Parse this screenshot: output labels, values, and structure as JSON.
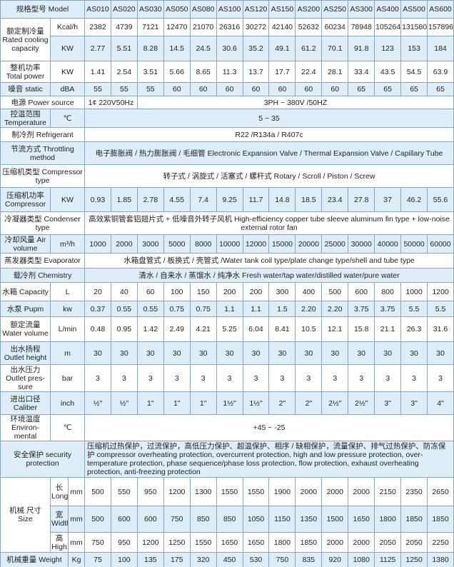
{
  "models": [
    "AS010",
    "AS020",
    "AS030",
    "AS050",
    "AS080",
    "AS100",
    "AS120",
    "AS150",
    "AS200",
    "AS250",
    "AS300",
    "AS400",
    "AS500",
    "AS600"
  ],
  "model_label": "规格型号 Model",
  "rows": [
    {
      "label": "额定制冷量 Rated cooling capacity",
      "unit": "Kcal/h",
      "values": [
        "2382",
        "4739",
        "7121",
        "12470",
        "21070",
        "26316",
        "30272",
        "42140",
        "52632",
        "60234",
        "78948",
        "105264",
        "131580",
        "157896"
      ],
      "h": 25,
      "bg": "w"
    },
    {
      "unit": "KW",
      "values": [
        "2.77",
        "5.51",
        "8.28",
        "14.5",
        "24.5",
        "30.6",
        "35.2",
        "49.1",
        "61.2",
        "70.1",
        "91.8",
        "123",
        "153",
        "184"
      ],
      "h": 35,
      "bg": "b"
    },
    {
      "label": "整机功率 Total power",
      "unit": "KW",
      "values": [
        "1.41",
        "2.54",
        "3.51",
        "5.66",
        "8.65",
        "11.3",
        "13.7",
        "17.7",
        "22.4",
        "28.1",
        "33.4",
        "43.5",
        "54.5",
        "63.9"
      ],
      "h": 30,
      "bg": "w"
    },
    {
      "label": "噪音 static",
      "unit": "dBA",
      "values": [
        "55",
        "55",
        "55",
        "60",
        "60",
        "60",
        "60",
        "60",
        "60",
        "60",
        "65",
        "65",
        "65",
        "65"
      ],
      "h": 19,
      "bg": "b"
    },
    {
      "label": "电源 Power source",
      "split": [
        "1¢ 220V50Hz",
        "3PH ~ 380V /50HZ"
      ],
      "h": 18,
      "bg": "w"
    },
    {
      "label": "控温范围 Temperature",
      "unit": "℃",
      "span": "5 ~ 35",
      "h": 26,
      "bg": "b"
    },
    {
      "label": "制冷剂 Refrigerant",
      "span": "R22 /R134a / R407c",
      "h": 20,
      "bg": "w"
    },
    {
      "label": "节流方式 Throttling method",
      "span": "电子膨胀阀 / 热力膨胀阀 / 毛细管 Electronic Expansion Valve / Thermal Expansion Valve / Capillary Tube",
      "h": 32,
      "bg": "b"
    },
    {
      "label": "压缩机类型 Compressor type",
      "span": "转子式 / 涡旋式 / 活塞式 / 螺杆式 Rotary / Scroll / Piston / Screw",
      "h": 32,
      "bg": "w"
    },
    {
      "label": "压缩机功率 Compressor",
      "unit": "KW",
      "values": [
        "0.93",
        "1.85",
        "2.78",
        "4.55",
        "7.4",
        "9.25",
        "11.7",
        "14.8",
        "18.5",
        "23.4",
        "27.8",
        "37",
        "46.2",
        "55.6"
      ],
      "h": 34,
      "bg": "b"
    },
    {
      "label": "冷凝器类型 Condenser type",
      "span": "高效紫铜管套铝翅片式 + 低噪音外转子风机 High-efficiency copper tube sleeve aluminum fin type + low-noise external rotor fan",
      "h": 32,
      "bg": "w"
    },
    {
      "label": "冷却风量 Air volume",
      "unit": "m³/h",
      "values": [
        "1000",
        "2000",
        "3000",
        "5000",
        "8000",
        "10000",
        "12000",
        "15000",
        "20000",
        "25000",
        "30000",
        "40000",
        "50000",
        "60000"
      ],
      "h": 26,
      "bg": "b"
    },
    {
      "label": "蒸发器类型 Evaporator",
      "span": "水箱盘管式 / 板换式 / 壳管式 /Water tank coil type/plate change type/shell and tube type",
      "h": 21,
      "bg": "w"
    },
    {
      "label": "载冷剂 Chemistry",
      "span": "清水 / 自来水 / 蒸馏水 / 纯净水 Fresh water/tap water/distilled water/pure water",
      "h": 20,
      "bg": "b"
    },
    {
      "label": "水箱 Capacity",
      "unit": "L",
      "values": [
        "20",
        "40",
        "60",
        "100",
        "150",
        "200",
        "200",
        "300",
        "400",
        "500",
        "600",
        "800",
        "1000",
        "1200"
      ],
      "h": 26,
      "bg": "w"
    },
    {
      "label": "水泵 Pupm",
      "unit": "kw",
      "values": [
        "0.37",
        "0.55",
        "0.55",
        "0.75",
        "0.75",
        "1.1",
        "1.1",
        "1.5",
        "2.20",
        "2.20",
        "3.75",
        "3.75",
        "5.5",
        "5.5"
      ],
      "h": 22,
      "bg": "b"
    },
    {
      "label": "额定流量 Water volume",
      "unit": "L/min",
      "values": [
        "0.48",
        "0.95",
        "1.42",
        "2.49",
        "4.21",
        "5.25",
        "6.04",
        "8.41",
        "10.5",
        "12.1",
        "15.8",
        "21.1",
        "26.3",
        "31.6"
      ],
      "h": 35,
      "bg": "w"
    },
    {
      "label": "出水扬程 Outlet height",
      "unit": "m",
      "values": [
        "30",
        "30",
        "30",
        "30",
        "30",
        "30",
        "30",
        "30",
        "30",
        "30",
        "30",
        "30",
        "30",
        "30"
      ],
      "h": 32,
      "bg": "b"
    },
    {
      "label": "出水压力 Outlet pres-sure",
      "unit": "bar",
      "values": [
        "3",
        "3",
        "3",
        "3",
        "3",
        "3",
        "3",
        "3",
        "3",
        "3",
        "3",
        "3",
        "3",
        "3"
      ],
      "h": 38,
      "bg": "w"
    },
    {
      "label": "进出口径 Caliber",
      "unit": "inch",
      "values": [
        "½\"",
        "½\"",
        "1\"",
        "1\"",
        "1\"",
        "1½\"",
        "1½\"",
        "2\"",
        "2\"",
        "2½\"",
        "2½\"",
        "3\"",
        "3\"",
        "4\""
      ],
      "h": 32,
      "bg": "b"
    },
    {
      "label": "环境温度 Environ-mental",
      "unit": "℃",
      "span": "+45 ~ -25",
      "h": 37,
      "bg": "w"
    },
    {
      "label": "安全保护 security protection",
      "text": "压缩机过热保护，过流保护，高低压力保护、超温保护、相序 / 缺相保护，流量保护、排气过热保护、防冻保护 compressor overheating protection, overcurrent protection, high and low pressure protection, over-temperature protection, phase sequence/phase loss protection, flow protection, exhaust overheating protection, anti-freezing protection",
      "h": 51,
      "bg": "b"
    }
  ],
  "size": {
    "label": "机械 尺寸 Size",
    "unit": "mm",
    "rows": [
      {
        "label": "长 Long",
        "values": [
          "500",
          "550",
          "950",
          "1200",
          "1300",
          "1550",
          "1550",
          "1900",
          "2000",
          "2000",
          "2000",
          "2150",
          "2350",
          "2650"
        ],
        "bg": "w"
      },
      {
        "label": "宽 Width",
        "values": [
          "500",
          "600",
          "600",
          "750",
          "850",
          "850",
          "1050",
          "1150",
          "1350",
          "1500",
          "1650",
          "1800",
          "1850",
          "1850"
        ],
        "bg": "b"
      },
      {
        "label": "高 High",
        "values": [
          "750",
          "950",
          "1200",
          "1250",
          "1550",
          "1650",
          "1650",
          "1800",
          "1850",
          "2000",
          "2000",
          "2050",
          "2050",
          "2250"
        ],
        "bg": "w"
      }
    ]
  },
  "weight": {
    "label": "机械重量 Weight",
    "unit": "Kg",
    "values": [
      "75",
      "100",
      "135",
      "175",
      "320",
      "450",
      "530",
      "750",
      "835",
      "920",
      "1080",
      "1125",
      "1250",
      "1380"
    ]
  }
}
